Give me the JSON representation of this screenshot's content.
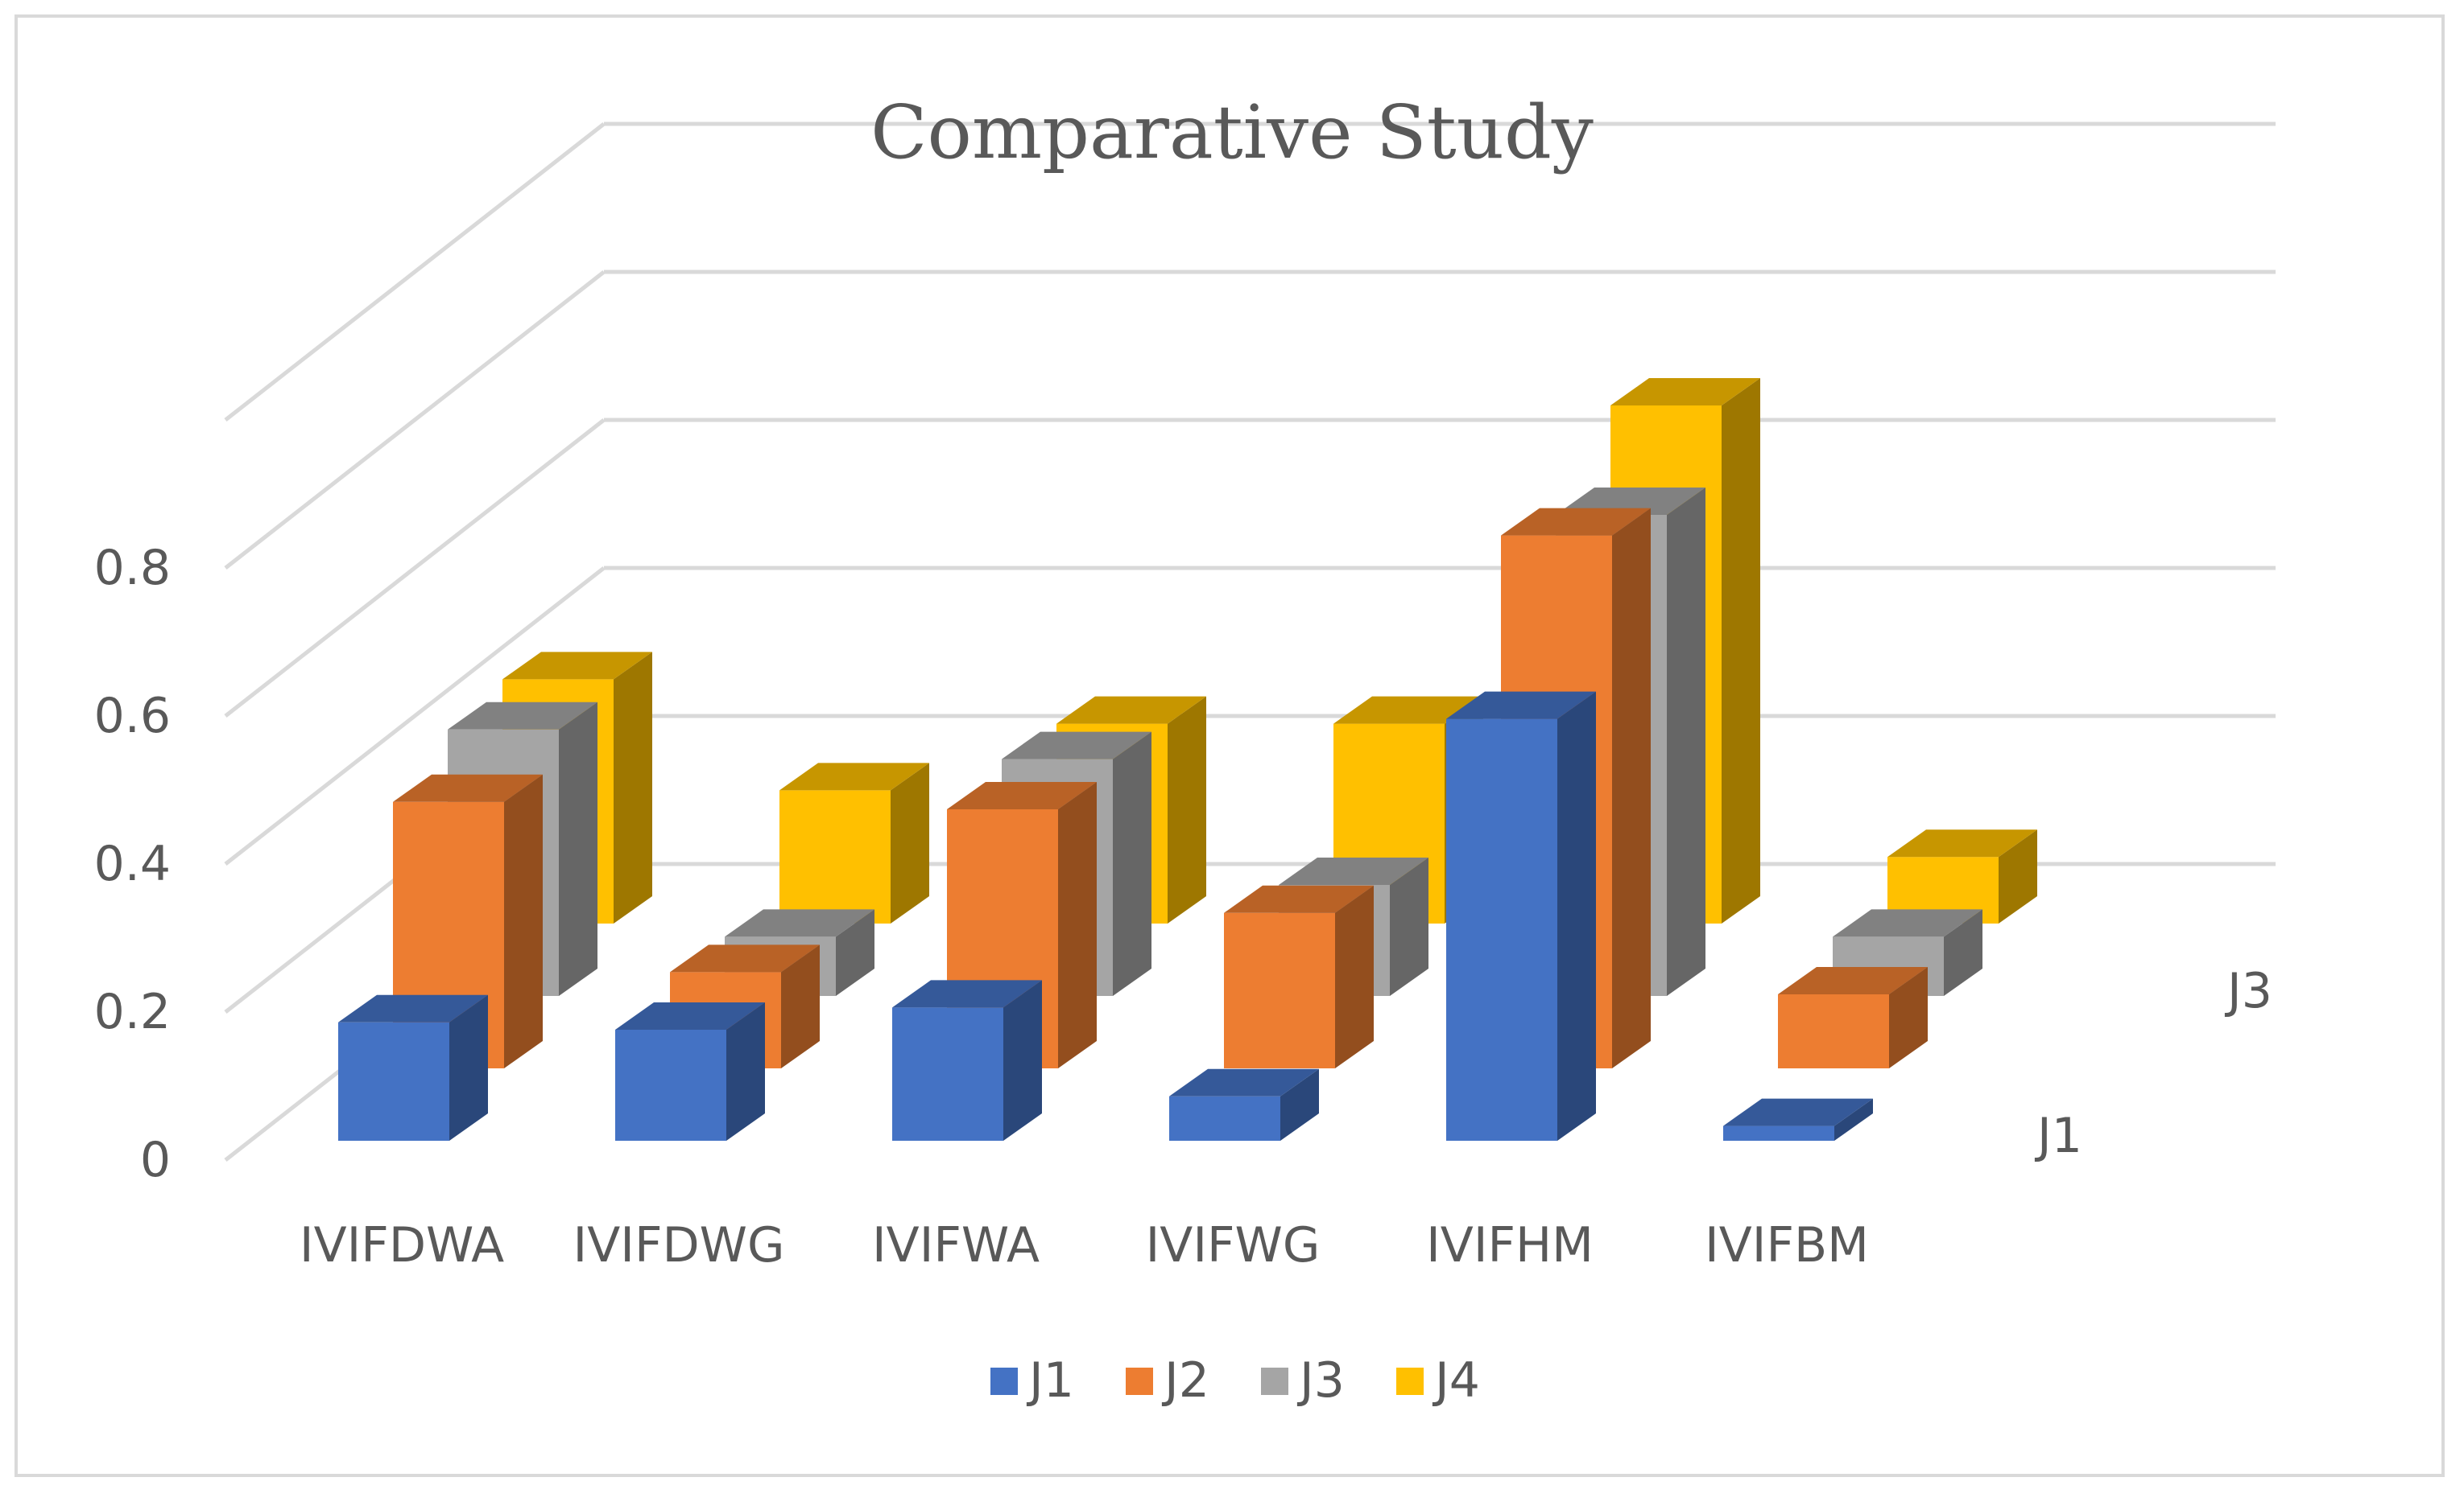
{
  "chart_data": {
    "type": "bar",
    "variant": "3d-column",
    "title": "Comparative Study",
    "categories": [
      "IVIFDWA",
      "IVIFDWG",
      "IVIFWA",
      "IVIFWG",
      "IVIFHM",
      "IVIFBM"
    ],
    "series": [
      {
        "name": "J1",
        "color": "#4472C4",
        "values": [
          0.16,
          0.15,
          0.18,
          0.06,
          0.57,
          0.02
        ]
      },
      {
        "name": "J2",
        "color": "#ED7D31",
        "values": [
          0.36,
          0.13,
          0.35,
          0.21,
          0.72,
          0.1
        ]
      },
      {
        "name": "J3",
        "color": "#A5A5A5",
        "values": [
          0.36,
          0.08,
          0.32,
          0.15,
          0.65,
          0.08
        ]
      },
      {
        "name": "J4",
        "color": "#FFC000",
        "values": [
          0.33,
          0.18,
          0.27,
          0.27,
          0.7,
          0.09
        ]
      }
    ],
    "y_ticks": [
      "0",
      "0.2",
      "0.4",
      "0.6",
      "0.8"
    ],
    "ylim": [
      0,
      1.0
    ],
    "depth_axis_labels": [
      "J1",
      "J3"
    ],
    "legend_position": "bottom",
    "grid": true
  }
}
